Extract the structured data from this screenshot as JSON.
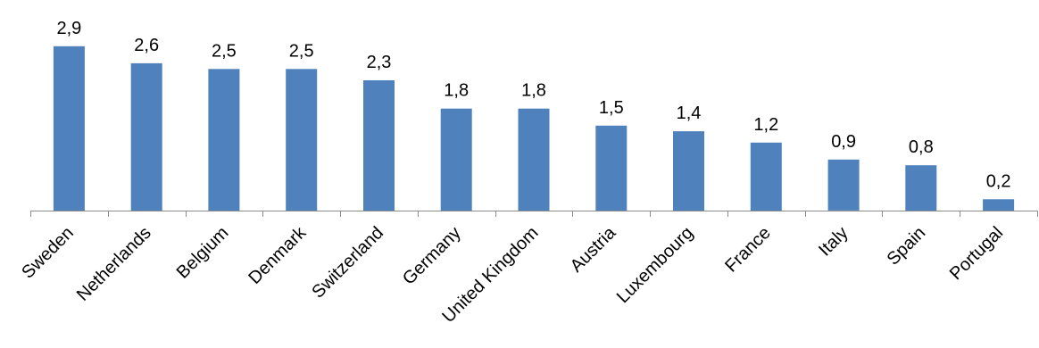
{
  "chart_data": {
    "type": "bar",
    "title": "",
    "xlabel": "",
    "ylabel": "",
    "categories": [
      "Sweden",
      "Netherlands",
      "Belgium",
      "Denmark",
      "Switzerland",
      "Germany",
      "United Kingdom",
      "Austria",
      "Luxembourg",
      "France",
      "Italy",
      "Spain",
      "Portugal"
    ],
    "values": [
      2.9,
      2.6,
      2.5,
      2.5,
      2.3,
      1.8,
      1.8,
      1.5,
      1.4,
      1.2,
      0.9,
      0.8,
      0.2
    ],
    "value_labels": [
      "2,9",
      "2,6",
      "2,5",
      "2,5",
      "2,3",
      "1,8",
      "1,8",
      "1,5",
      "1,4",
      "1,2",
      "0,9",
      "0,8",
      "0,2"
    ],
    "ylim": [
      0,
      3.0
    ],
    "grid": false,
    "legend": "none",
    "colors": {
      "bar": "#4f81bd",
      "axis": "#8c8c8c",
      "text": "#000000"
    }
  }
}
